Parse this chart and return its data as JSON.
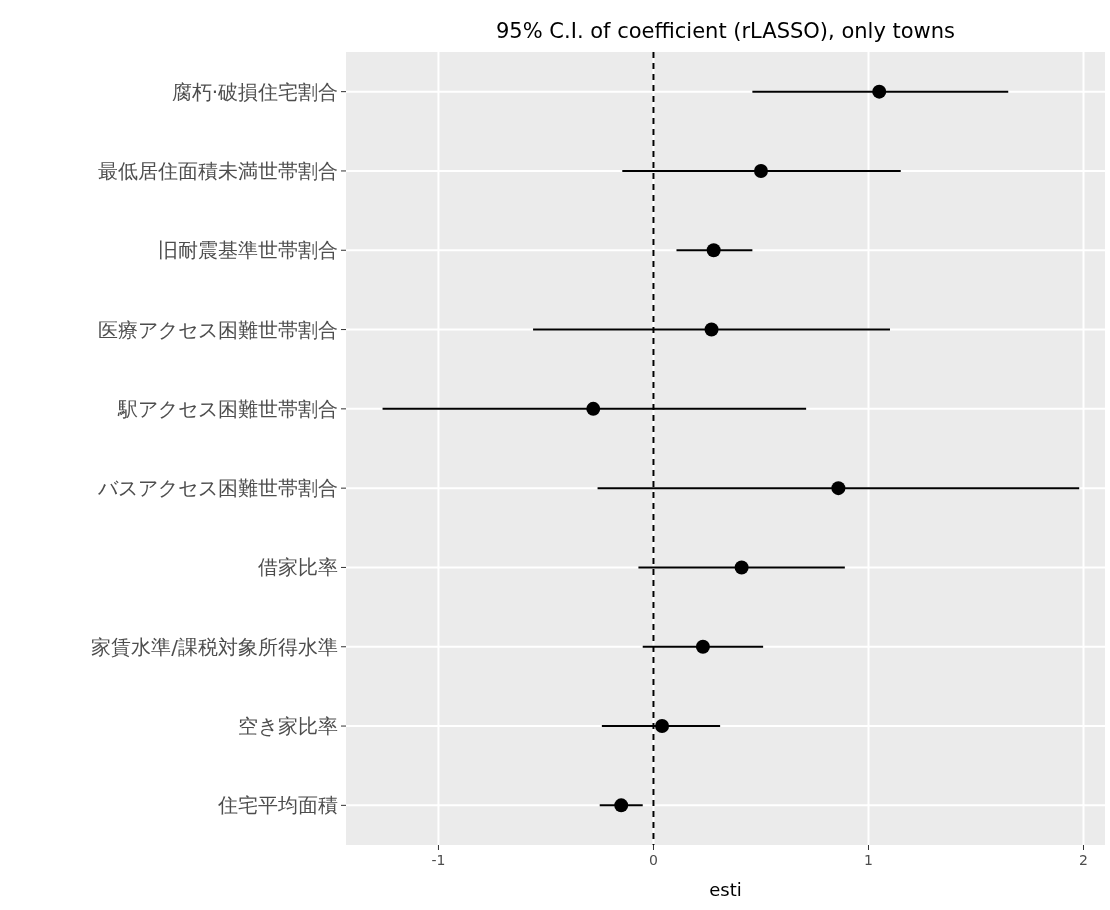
{
  "chart_data": {
    "type": "scatter",
    "orientation": "horizontal",
    "title": "95% C.I. of coefficient (rLASSO), only towns",
    "xlabel": "esti",
    "categories": [
      "腐朽·破損住宅割合",
      "最低居住面積未満世帯割合",
      "旧耐震基準世帯割合",
      "医療アクセス困難世帯割合",
      "駅アクセス困難世帯割合",
      "バスアクセス困難世帯割合",
      "借家比率",
      "家賃水準/課税対象所得水準",
      "空き家比率",
      "住宅平均面積"
    ],
    "series": [
      {
        "color": "#000000",
        "values": [
          1.05,
          0.5,
          0.28,
          0.27,
          -0.28,
          0.86,
          0.41,
          0.23,
          0.04,
          -0.15
        ],
        "errors": [
          [
            0.46,
            1.65
          ],
          [
            -0.145,
            1.15
          ],
          [
            0.107,
            0.46
          ],
          [
            -0.56,
            1.1
          ],
          [
            -1.26,
            0.71
          ],
          [
            -0.26,
            1.98
          ],
          [
            -0.07,
            0.89
          ],
          [
            -0.05,
            0.51
          ],
          [
            -0.24,
            0.31
          ],
          [
            -0.25,
            -0.05
          ]
        ]
      }
    ],
    "xlim": [
      -1.43,
      2.1
    ],
    "xticks": [
      -1,
      0,
      1,
      2
    ],
    "grid": true,
    "marker": "circle",
    "ref_lines": [
      {
        "axis": "x",
        "value": 0,
        "color": "#000000",
        "line_style": "dashed"
      }
    ]
  }
}
